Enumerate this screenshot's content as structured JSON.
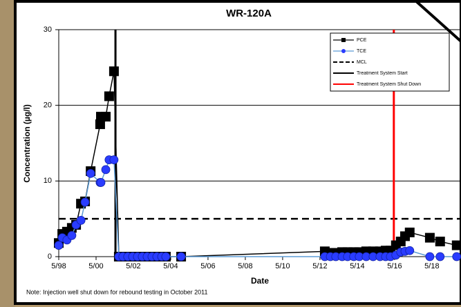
{
  "chart_data": {
    "type": "line",
    "title": "WR-120A",
    "x_label": "Date",
    "y_label": "Concentration (µg/l)",
    "note": "Note: Injection well shut down for rebound testing in October 2011",
    "x": [
      1998.33,
      1998.52,
      1998.77,
      1999.03,
      1999.26,
      1999.52,
      1999.74,
      2000.04,
      2000.55,
      2000.59,
      2000.85,
      2001.03,
      2001.29,
      2001.55,
      2001.77,
      2002.03,
      2002.29,
      2002.55,
      2002.81,
      2003.07,
      2003.33,
      2003.59,
      2003.85,
      2004.07,
      2004.89,
      2012.59,
      2012.89,
      2013.18,
      2013.52,
      2013.81,
      2014.14,
      2014.44,
      2014.81,
      2015.18,
      2015.55,
      2015.85,
      2016.11,
      2016.4,
      2016.66,
      2016.89,
      2017.14,
      2018.22,
      2018.77,
      2019.66
    ],
    "series": [
      {
        "name": "PCE",
        "color": "#000000",
        "marker": "square",
        "values": [
          1.8,
          3.0,
          3.3,
          3.8,
          4.2,
          7.0,
          7.3,
          11.3,
          17.5,
          18.5,
          18.5,
          21.2,
          24.5,
          0,
          0,
          0,
          0,
          0,
          0,
          0,
          0,
          0,
          0,
          0,
          0,
          0.7,
          0.5,
          0.5,
          0.6,
          0.6,
          0.6,
          0.6,
          0.7,
          0.7,
          0.7,
          0.8,
          0.8,
          1.5,
          2.0,
          2.7,
          3.2,
          2.5,
          2.0,
          1.5
        ]
      },
      {
        "name": "TCE",
        "color": "#5b9bd5",
        "marker_color": "#2a3cff",
        "marker": "circle",
        "values": [
          1.5,
          2.5,
          2.2,
          2.8,
          4.2,
          4.8,
          7.2,
          11.0,
          9.8,
          9.8,
          11.5,
          12.8,
          12.8,
          0,
          0,
          0,
          0,
          0,
          0,
          0,
          0,
          0,
          0,
          0,
          0,
          0,
          0,
          0,
          0,
          0,
          0,
          0,
          0,
          0,
          0,
          0,
          0,
          0.2,
          0.6,
          0.7,
          0.8,
          0,
          0,
          0
        ]
      }
    ],
    "reference_lines": [
      {
        "name": "MCL",
        "axis": "y",
        "value": 5,
        "color": "#000000",
        "style": "dashed"
      },
      {
        "name": "Treatment System Start",
        "axis": "x",
        "value": 2001.37,
        "color": "#000000",
        "style": "solid"
      },
      {
        "name": "Treatment System Shut Down",
        "axis": "x",
        "value": 2016.29,
        "color": "#ff0000",
        "style": "solid"
      }
    ],
    "xlim": [
      1998.33,
      2019.89
    ],
    "xticks": [
      {
        "value": 1998.33,
        "label": "5/98"
      },
      {
        "value": 2000.33,
        "label": "5/00"
      },
      {
        "value": 2002.33,
        "label": "5/02"
      },
      {
        "value": 2004.33,
        "label": "5/04"
      },
      {
        "value": 2006.33,
        "label": "5/06"
      },
      {
        "value": 2008.33,
        "label": "5/08"
      },
      {
        "value": 2010.33,
        "label": "5/10"
      },
      {
        "value": 2012.33,
        "label": "5/12"
      },
      {
        "value": 2014.33,
        "label": "5/14"
      },
      {
        "value": 2016.33,
        "label": "5/16"
      },
      {
        "value": 2018.33,
        "label": "5/18"
      }
    ],
    "ylim": [
      0,
      30
    ],
    "yticks": [
      0,
      10,
      20,
      30
    ],
    "grid": true,
    "legend": "top-right"
  }
}
